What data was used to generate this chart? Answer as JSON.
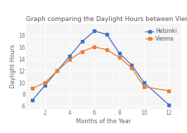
{
  "title": "Graph comparing the Daylight Hours between Vienna and Helsinki",
  "xlabel": "Months of the Year",
  "ylabel": "Daylight Hours",
  "helsinki_x": [
    1,
    2,
    3,
    4,
    5,
    6,
    7,
    8,
    9,
    10,
    12
  ],
  "helsinki_y": [
    7.0,
    9.5,
    12.0,
    14.5,
    17.0,
    18.8,
    18.2,
    15.0,
    13.0,
    10.0,
    6.2
  ],
  "vienna_x": [
    1,
    2,
    3,
    4,
    5,
    6,
    7,
    8,
    9,
    10,
    12
  ],
  "vienna_y": [
    9.0,
    10.0,
    12.0,
    13.9,
    15.3,
    16.1,
    15.6,
    14.3,
    12.5,
    9.3,
    8.6
  ],
  "helsinki_color": "#4472c4",
  "vienna_color": "#ed7d31",
  "bg_color": "#ffffff",
  "plot_bg_color": "#f5f5f5",
  "grid_color": "#ffffff",
  "xlim": [
    0.5,
    13
  ],
  "ylim": [
    5.5,
    20
  ],
  "xticks": [
    2,
    4,
    6,
    8,
    10,
    12
  ],
  "yticks": [
    6,
    8,
    10,
    12,
    14,
    16,
    18
  ],
  "title_fontsize": 6.5,
  "label_fontsize": 6.0,
  "tick_fontsize": 5.5,
  "legend_fontsize": 5.5
}
